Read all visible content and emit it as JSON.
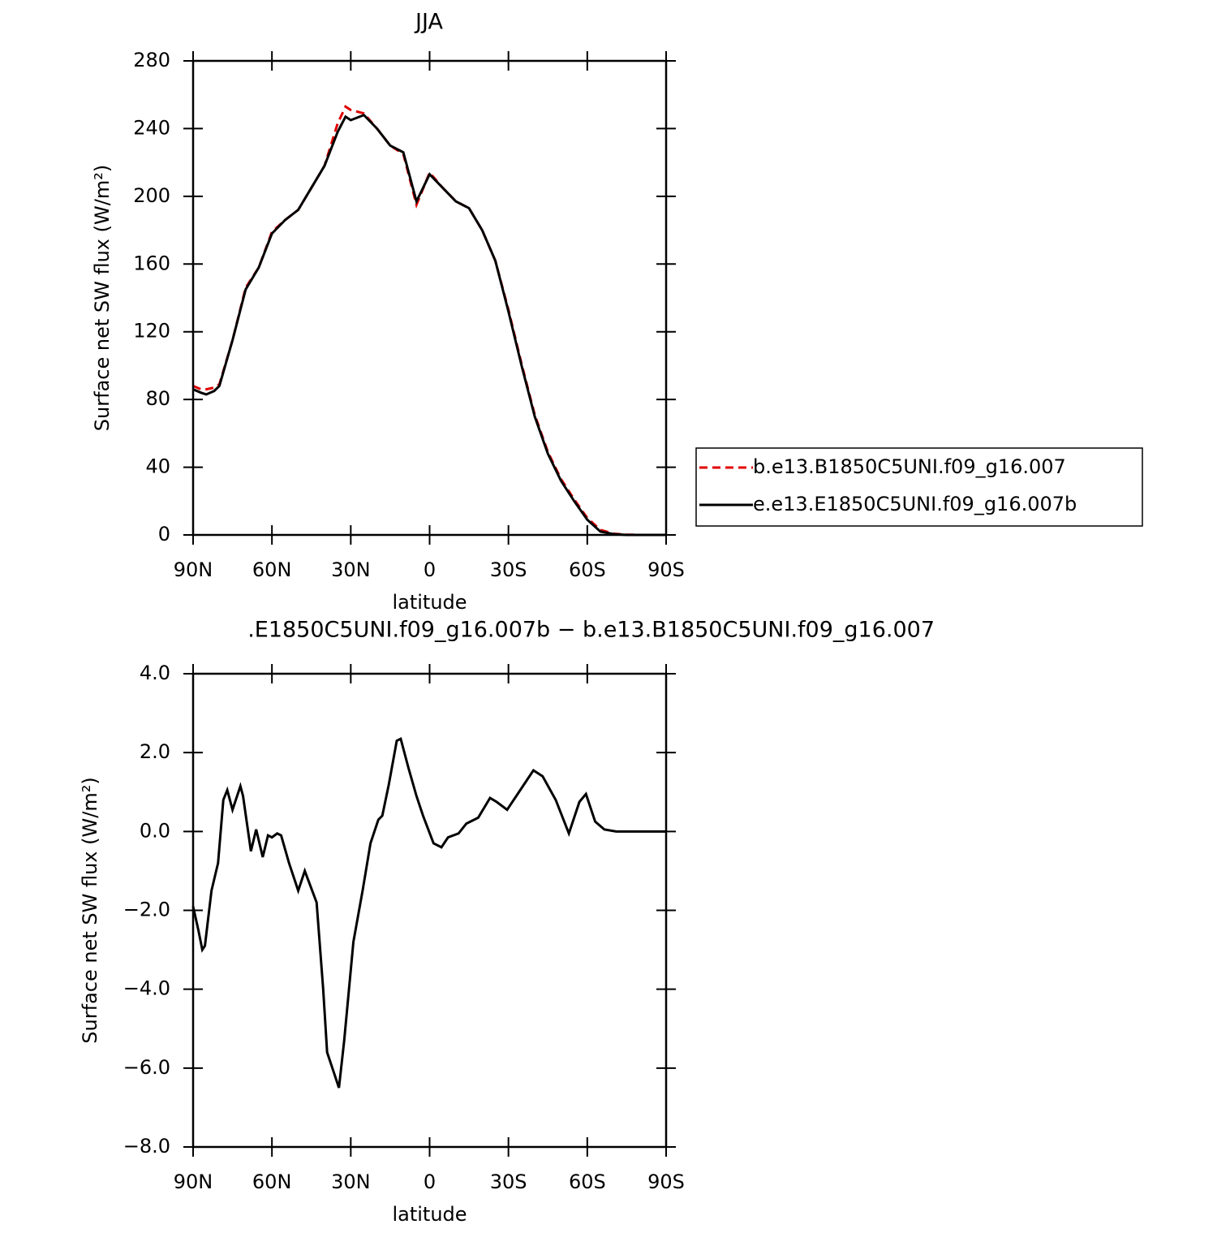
{
  "chart_data": [
    {
      "type": "line",
      "title": "JJA",
      "xlabel": "latitude",
      "ylabel": "Surface net SW flux (W/m²)",
      "x": [
        90,
        87,
        85,
        82,
        80,
        75,
        70,
        65,
        60,
        55,
        50,
        45,
        40,
        35,
        32,
        30,
        25,
        20,
        15,
        10,
        5,
        0,
        -5,
        -10,
        -15,
        -20,
        -25,
        -30,
        -35,
        -40,
        -45,
        -50,
        -55,
        -60,
        -65,
        -70,
        -75,
        -80,
        -90
      ],
      "series": [
        {
          "name": "b.e13.B1850C5UNI.f09_g16.007",
          "color": "#e00000",
          "dashed": true,
          "values": [
            88,
            86,
            86,
            87,
            89,
            115,
            146,
            158,
            179,
            186,
            192,
            205,
            218,
            243,
            253,
            251,
            249,
            240,
            230,
            225,
            195,
            214,
            205,
            197,
            193,
            180,
            162,
            133,
            101,
            71,
            49,
            33,
            21,
            10,
            3,
            0.7,
            0.2,
            0,
            0
          ]
        },
        {
          "name": "e.e13.E1850C5UNI.f09_g16.007b",
          "color": "#000000",
          "dashed": false,
          "values": [
            86,
            84,
            83,
            85,
            88,
            115,
            145,
            158,
            178,
            186,
            192,
            205,
            218,
            238,
            247,
            245,
            248,
            240,
            230,
            226,
            197,
            213,
            205,
            197,
            193,
            180,
            162,
            132,
            100,
            70,
            48,
            32,
            20,
            9,
            2,
            0.5,
            0,
            0,
            0
          ]
        }
      ],
      "xlim": [
        90,
        -90
      ],
      "xticks": [
        {
          "value": 90,
          "label": "90N"
        },
        {
          "value": 60,
          "label": "60N"
        },
        {
          "value": 30,
          "label": "30N"
        },
        0,
        {
          "value": -30,
          "label": "30S"
        },
        {
          "value": -60,
          "label": "60S"
        },
        {
          "value": -90,
          "label": "90S"
        }
      ],
      "ylim": [
        0,
        280
      ],
      "yticks": [
        0,
        40,
        80,
        120,
        160,
        200,
        240,
        280
      ],
      "legend": "right"
    },
    {
      "type": "line",
      "title": ".E1850C5UNI.f09_g16.007b − b.e13.B1850C5UNI.f09_g16.007",
      "xlabel": "latitude",
      "ylabel": "Surface net SW flux (W/m²)",
      "x": [
        90,
        88,
        86.5,
        85.5,
        83,
        80.5,
        78.5,
        77,
        75,
        72,
        71,
        68,
        66,
        63.5,
        61.5,
        60,
        58,
        56.5,
        53.5,
        50,
        47.5,
        43,
        40.5,
        39,
        37,
        34.5,
        32.5,
        29,
        25.5,
        22.5,
        19.5,
        18,
        15.5,
        12.5,
        11,
        8,
        5,
        2.5,
        -1.5,
        -4.5,
        -7,
        -11,
        -14,
        -18.5,
        -23,
        -25.5,
        -29.5,
        -34,
        -39.5,
        -43,
        -48,
        -53,
        -57,
        -59.5,
        -63,
        -66.5,
        -71,
        -90
      ],
      "series": [
        {
          "name": "difference",
          "color": "#000000",
          "dashed": false,
          "values": [
            -1.9,
            -2.5,
            -3.0,
            -2.9,
            -1.5,
            -0.8,
            0.8,
            1.05,
            0.55,
            1.15,
            0.9,
            -0.5,
            0.05,
            -0.65,
            -0.1,
            -0.15,
            -0.05,
            -0.1,
            -0.8,
            -1.5,
            -1.0,
            -1.8,
            -4.0,
            -5.6,
            -6.0,
            -6.5,
            -5.3,
            -2.8,
            -1.5,
            -0.3,
            0.3,
            0.4,
            1.2,
            2.3,
            2.35,
            1.6,
            0.9,
            0.4,
            -0.3,
            -0.4,
            -0.15,
            -0.05,
            0.2,
            0.35,
            0.85,
            0.75,
            0.55,
            1.0,
            1.55,
            1.4,
            0.8,
            -0.05,
            0.75,
            0.95,
            0.25,
            0.05,
            0,
            0
          ]
        }
      ],
      "xlim": [
        90,
        -90
      ],
      "xticks": [
        {
          "value": 90,
          "label": "90N"
        },
        {
          "value": 60,
          "label": "60N"
        },
        {
          "value": 30,
          "label": "30N"
        },
        0,
        {
          "value": -30,
          "label": "30S"
        },
        {
          "value": -60,
          "label": "60S"
        },
        {
          "value": -90,
          "label": "90S"
        }
      ],
      "ylim": [
        -8,
        4
      ],
      "yticks": [
        {
          "value": -8,
          "label": "−8.0"
        },
        {
          "value": -6,
          "label": "−6.0"
        },
        {
          "value": -4,
          "label": "−4.0"
        },
        {
          "value": -2,
          "label": "−2.0"
        },
        {
          "value": 0,
          "label": "0.0"
        },
        {
          "value": 2,
          "label": "2.0"
        },
        {
          "value": 4,
          "label": "4.0"
        }
      ]
    }
  ]
}
